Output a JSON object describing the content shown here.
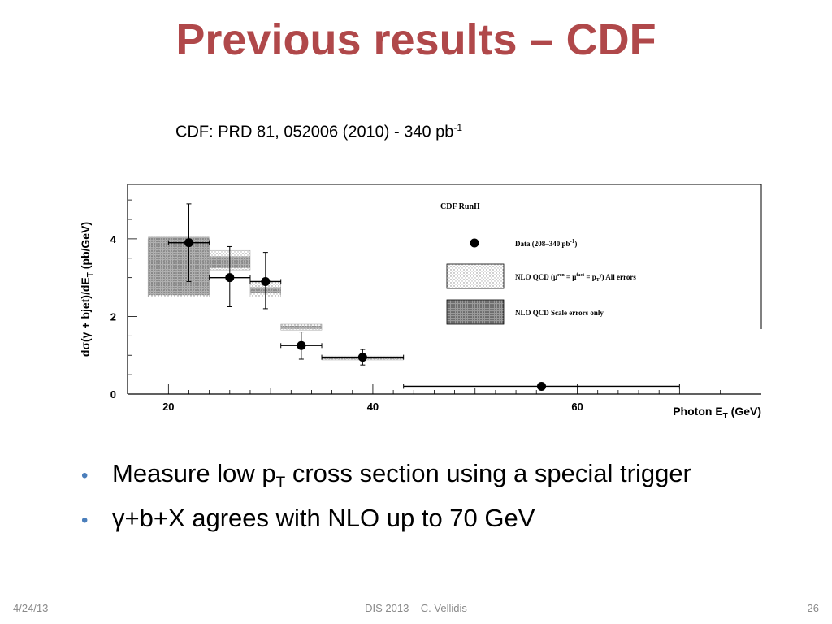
{
  "slide": {
    "title": "Previous results – CDF",
    "citation_main": "CDF: PRD 81, 052006 (2010) - 340 pb",
    "citation_exp": "-1"
  },
  "bullets": [
    {
      "text_before": "Measure low p",
      "subscript": "T",
      "text_after": " cross section using a special trigger"
    },
    {
      "text_before": "γ+b+X agrees with NLO up to 70 GeV",
      "subscript": "",
      "text_after": ""
    }
  ],
  "footer": {
    "date": "4/24/13",
    "center": "DIS 2013 – C. Vellidis",
    "page": "26"
  },
  "colors": {
    "title": "#b0484a",
    "bullet": "#4a7ebb"
  },
  "chart_data": {
    "type": "scatter",
    "ylabel": "dσ(γ + bjet)/dE",
    "ylabel_subscript": "T",
    "ylabel_unit": " (pb/GeV)",
    "xlabel": "Photon E",
    "xlabel_subscript": "T",
    "xlabel_unit": " (GeV)",
    "xlim": [
      16,
      78
    ],
    "ylim": [
      0,
      5.4
    ],
    "xticks": [
      20,
      40,
      60
    ],
    "yticks": [
      0,
      2,
      4
    ],
    "legend": {
      "title": "CDF RunII",
      "placement": "top-right",
      "entries": [
        {
          "kind": "data",
          "label": "Data (208–340 pb",
          "label_sup": "-1",
          "label_end": ")"
        },
        {
          "kind": "light",
          "label": "NLO QCD (μ",
          "label_sup": "ren",
          "label_mid": " = μ",
          "label_sup2": "fact",
          "label_end": " = p",
          "label_sub3": "T",
          "label_sup3": "γ",
          "label_tail": ") All errors"
        },
        {
          "kind": "dark",
          "label": "NLO QCD Scale errors only"
        }
      ]
    },
    "data": [
      {
        "x": 22,
        "xlow": 20,
        "xhigh": 24,
        "y": 3.9,
        "yerr_low": 1.0,
        "yerr_high": 1.0
      },
      {
        "x": 26,
        "xlow": 24,
        "xhigh": 28,
        "y": 3.0,
        "yerr_low": 0.75,
        "yerr_high": 0.8
      },
      {
        "x": 29.5,
        "xlow": 28,
        "xhigh": 31,
        "y": 2.9,
        "yerr_low": 0.7,
        "yerr_high": 0.75
      },
      {
        "x": 33,
        "xlow": 31,
        "xhigh": 35,
        "y": 1.25,
        "yerr_low": 0.35,
        "yerr_high": 0.35
      },
      {
        "x": 39,
        "xlow": 35,
        "xhigh": 43,
        "y": 0.95,
        "yerr_low": 0.2,
        "yerr_high": 0.2
      },
      {
        "x": 56.5,
        "xlow": 43,
        "xhigh": 70,
        "y": 0.2,
        "yerr_low": 0.0,
        "yerr_high": 0.0
      }
    ],
    "nlo_all_errors": [
      {
        "xlow": 18,
        "xhigh": 24,
        "ylow": 2.5,
        "yhigh": 4.0
      },
      {
        "xlow": 24,
        "xhigh": 28,
        "ylow": 3.2,
        "yhigh": 3.7
      },
      {
        "xlow": 28,
        "xhigh": 31,
        "ylow": 2.5,
        "yhigh": 2.9
      },
      {
        "xlow": 31,
        "xhigh": 35,
        "ylow": 1.65,
        "yhigh": 1.8
      },
      {
        "xlow": 35,
        "xhigh": 43,
        "ylow": 0.88,
        "yhigh": 0.98
      }
    ],
    "nlo_scale_errors": [
      {
        "xlow": 18,
        "xhigh": 24,
        "ylow": 2.55,
        "yhigh": 4.05
      },
      {
        "xlow": 24,
        "xhigh": 28,
        "ylow": 3.25,
        "yhigh": 3.55
      },
      {
        "xlow": 28,
        "xhigh": 31,
        "ylow": 2.6,
        "yhigh": 2.75
      },
      {
        "xlow": 31,
        "xhigh": 35,
        "ylow": 1.68,
        "yhigh": 1.76
      },
      {
        "xlow": 35,
        "xhigh": 43,
        "ylow": 0.9,
        "yhigh": 0.95
      }
    ]
  }
}
